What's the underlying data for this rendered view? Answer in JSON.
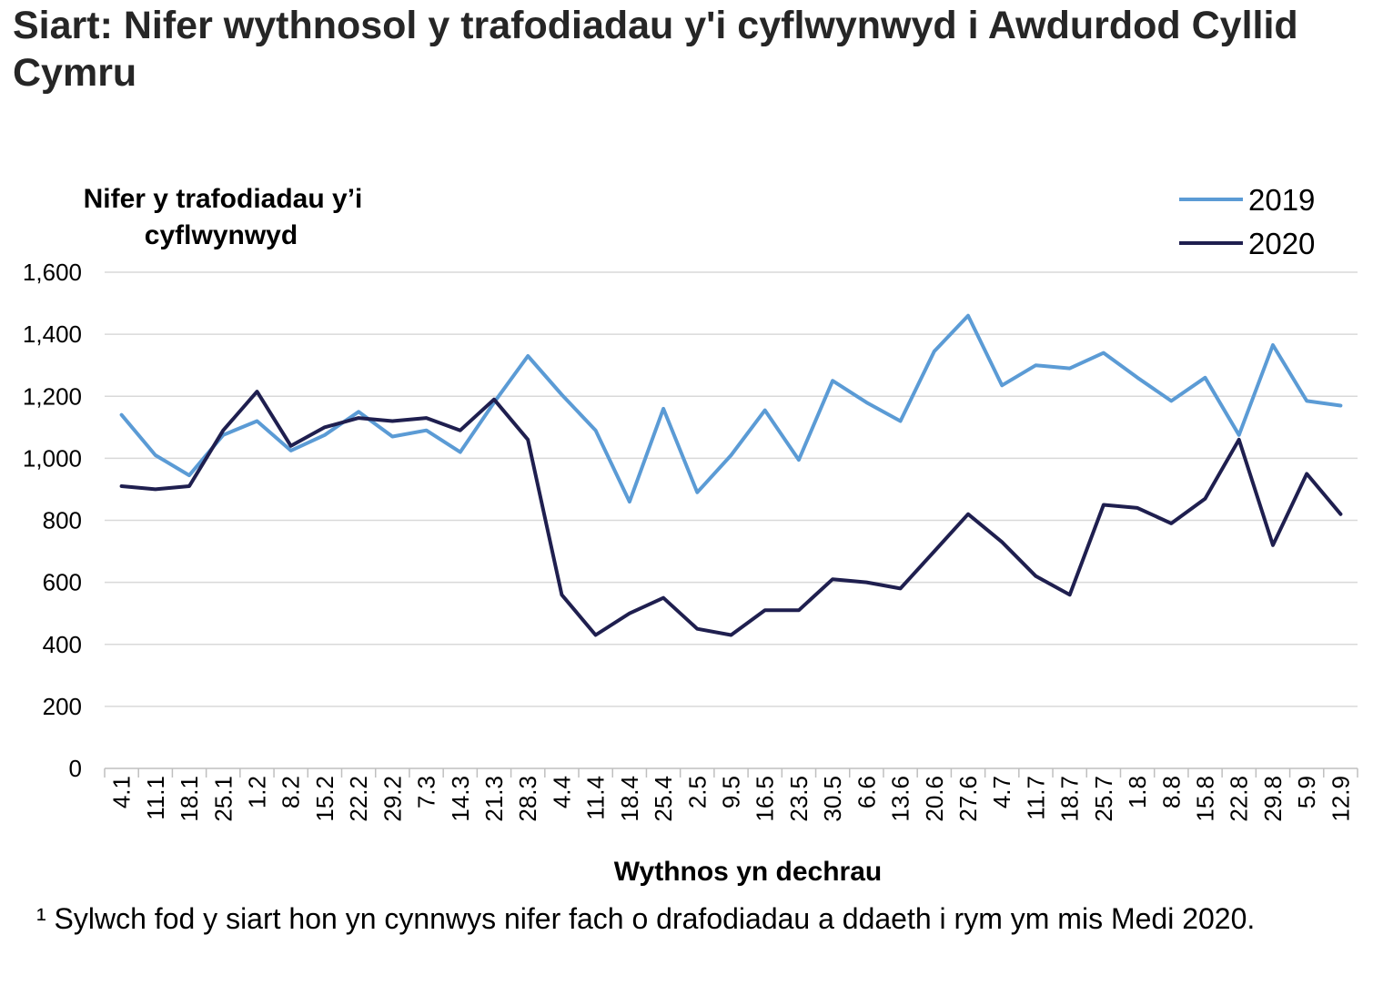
{
  "title": "Siart: Nifer wythnosol y trafodiadau y'i cyflwynwyd i Awdurdod Cyllid Cymru",
  "footnote": "¹ Sylwch fod y siart hon yn cynnwys nifer fach o drafodiadau a ddaeth i rym ym mis Medi 2020.",
  "chart_data": {
    "type": "line",
    "ylabel_line1": "Nifer y trafodiadau y’i",
    "ylabel_line2": "cyflwynwyd",
    "xlabel": "Wythnos yn dechrau",
    "ylim": [
      0,
      1600
    ],
    "yticks": [
      0,
      200,
      400,
      600,
      800,
      1000,
      1200,
      1400,
      1600
    ],
    "ytick_labels": [
      "0",
      "200",
      "400",
      "600",
      "800",
      "1,000",
      "1,200",
      "1,400",
      "1,600"
    ],
    "grid": true,
    "legend_position": "top-right",
    "categories": [
      "4.1",
      "11.1",
      "18.1",
      "25.1",
      "1.2",
      "8.2",
      "15.2",
      "22.2",
      "29.2",
      "7.3",
      "14.3",
      "21.3",
      "28.3",
      "4.4",
      "11.4",
      "18.4",
      "25.4",
      "2.5",
      "9.5",
      "16.5",
      "23.5",
      "30.5",
      "6.6",
      "13.6",
      "20.6",
      "27.6",
      "4.7",
      "11.7",
      "18.7",
      "25.7",
      "1.8",
      "8.8",
      "15.8",
      "22.8",
      "29.8",
      "5.9",
      "12.9"
    ],
    "series": [
      {
        "name": "2019",
        "color": "#5b9bd5",
        "values": [
          1140,
          1010,
          945,
          1075,
          1120,
          1025,
          1075,
          1150,
          1070,
          1090,
          1020,
          1180,
          1330,
          1205,
          1090,
          860,
          1160,
          890,
          1010,
          1155,
          995,
          1250,
          1180,
          1120,
          1345,
          1460,
          1235,
          1300,
          1290,
          1340,
          1260,
          1185,
          1260,
          1075,
          1365,
          1185,
          1170
        ]
      },
      {
        "name": "2020",
        "color": "#1f1f4f",
        "values": [
          910,
          900,
          910,
          1090,
          1215,
          1040,
          1100,
          1130,
          1120,
          1130,
          1090,
          1190,
          1060,
          560,
          430,
          500,
          550,
          450,
          430,
          510,
          510,
          610,
          600,
          580,
          700,
          820,
          730,
          620,
          560,
          850,
          840,
          790,
          870,
          1060,
          720,
          950,
          820
        ]
      }
    ]
  }
}
